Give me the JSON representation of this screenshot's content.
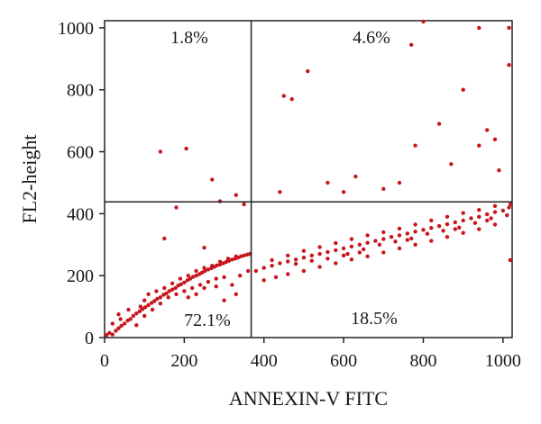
{
  "chart_data": {
    "type": "scatter",
    "title": "",
    "xlabel": "ANNEXIN-V FITC",
    "ylabel": "FL2-height",
    "xlim": [
      0,
      1023
    ],
    "ylim": [
      0,
      1023
    ],
    "xticks": [
      0,
      200,
      400,
      600,
      800,
      1000
    ],
    "yticks": [
      0,
      200,
      400,
      600,
      800,
      1000
    ],
    "xtick_labels": [
      "0",
      "200",
      "400",
      "600",
      "800",
      "1000"
    ],
    "ytick_labels": [
      "0",
      "200",
      "400",
      "600",
      "800",
      "1000"
    ],
    "gates": {
      "x": 368,
      "y": 438
    },
    "quadrants": [
      {
        "position": "upper-left",
        "label": "1.8%"
      },
      {
        "position": "upper-right",
        "label": "4.6%"
      },
      {
        "position": "lower-left",
        "label": "72.1%"
      },
      {
        "position": "lower-right",
        "label": "18.5%"
      }
    ],
    "point_color": "#c8161d",
    "grid": false,
    "legend": "none",
    "series": [
      {
        "points": [
          [
            5,
            8
          ],
          [
            12,
            15
          ],
          [
            20,
            10
          ],
          [
            28,
            22
          ],
          [
            35,
            30
          ],
          [
            42,
            38
          ],
          [
            50,
            45
          ],
          [
            58,
            55
          ],
          [
            65,
            60
          ],
          [
            72,
            70
          ],
          [
            80,
            78
          ],
          [
            88,
            85
          ],
          [
            95,
            92
          ],
          [
            102,
            98
          ],
          [
            110,
            105
          ],
          [
            118,
            112
          ],
          [
            125,
            118
          ],
          [
            132,
            125
          ],
          [
            140,
            130
          ],
          [
            148,
            138
          ],
          [
            155,
            142
          ],
          [
            162,
            150
          ],
          [
            170,
            155
          ],
          [
            178,
            160
          ],
          [
            185,
            168
          ],
          [
            192,
            172
          ],
          [
            200,
            178
          ],
          [
            208,
            185
          ],
          [
            215,
            190
          ],
          [
            222,
            196
          ],
          [
            230,
            200
          ],
          [
            238,
            205
          ],
          [
            245,
            210
          ],
          [
            252,
            215
          ],
          [
            260,
            220
          ],
          [
            268,
            224
          ],
          [
            275,
            228
          ],
          [
            282,
            233
          ],
          [
            290,
            236
          ],
          [
            298,
            240
          ],
          [
            305,
            244
          ],
          [
            312,
            248
          ],
          [
            320,
            252
          ],
          [
            328,
            255
          ],
          [
            335,
            258
          ],
          [
            342,
            262
          ],
          [
            350,
            265
          ],
          [
            358,
            268
          ],
          [
            365,
            270
          ],
          [
            120,
            90
          ],
          [
            140,
            110
          ],
          [
            160,
            130
          ],
          [
            180,
            140
          ],
          [
            200,
            150
          ],
          [
            220,
            160
          ],
          [
            240,
            170
          ],
          [
            260,
            180
          ],
          [
            280,
            190
          ],
          [
            300,
            195
          ],
          [
            150,
            160
          ],
          [
            170,
            175
          ],
          [
            190,
            190
          ],
          [
            210,
            200
          ],
          [
            230,
            215
          ],
          [
            250,
            225
          ],
          [
            270,
            232
          ],
          [
            290,
            245
          ],
          [
            310,
            255
          ],
          [
            330,
            262
          ],
          [
            100,
            120
          ],
          [
            90,
            100
          ],
          [
            130,
            150
          ],
          [
            320,
            170
          ],
          [
            340,
            200
          ],
          [
            360,
            215
          ],
          [
            250,
            160
          ],
          [
            230,
            140
          ],
          [
            210,
            130
          ],
          [
            280,
            165
          ],
          [
            380,
            215
          ],
          [
            400,
            225
          ],
          [
            420,
            232
          ],
          [
            440,
            240
          ],
          [
            460,
            246
          ],
          [
            480,
            252
          ],
          [
            500,
            258
          ],
          [
            520,
            265
          ],
          [
            540,
            270
          ],
          [
            560,
            276
          ],
          [
            580,
            282
          ],
          [
            600,
            288
          ],
          [
            620,
            294
          ],
          [
            640,
            300
          ],
          [
            660,
            306
          ],
          [
            680,
            312
          ],
          [
            700,
            318
          ],
          [
            720,
            325
          ],
          [
            740,
            330
          ],
          [
            760,
            336
          ],
          [
            780,
            342
          ],
          [
            800,
            348
          ],
          [
            820,
            354
          ],
          [
            840,
            360
          ],
          [
            860,
            366
          ],
          [
            880,
            372
          ],
          [
            900,
            378
          ],
          [
            920,
            385
          ],
          [
            940,
            390
          ],
          [
            960,
            398
          ],
          [
            980,
            405
          ],
          [
            1000,
            410
          ],
          [
            1015,
            420
          ],
          [
            400,
            185
          ],
          [
            430,
            195
          ],
          [
            460,
            205
          ],
          [
            500,
            215
          ],
          [
            540,
            228
          ],
          [
            580,
            240
          ],
          [
            620,
            252
          ],
          [
            660,
            262
          ],
          [
            700,
            275
          ],
          [
            740,
            288
          ],
          [
            780,
            300
          ],
          [
            820,
            312
          ],
          [
            860,
            325
          ],
          [
            900,
            338
          ],
          [
            940,
            350
          ],
          [
            980,
            365
          ],
          [
            420,
            250
          ],
          [
            460,
            265
          ],
          [
            500,
            280
          ],
          [
            540,
            292
          ],
          [
            580,
            305
          ],
          [
            620,
            318
          ],
          [
            660,
            330
          ],
          [
            700,
            340
          ],
          [
            740,
            352
          ],
          [
            780,
            365
          ],
          [
            820,
            378
          ],
          [
            860,
            390
          ],
          [
            900,
            402
          ],
          [
            940,
            412
          ],
          [
            980,
            425
          ],
          [
            560,
            255
          ],
          [
            610,
            270
          ],
          [
            650,
            285
          ],
          [
            690,
            300
          ],
          [
            730,
            310
          ],
          [
            770,
            320
          ],
          [
            810,
            335
          ],
          [
            850,
            345
          ],
          [
            890,
            355
          ],
          [
            930,
            370
          ],
          [
            970,
            385
          ],
          [
            1010,
            395
          ],
          [
            480,
            238
          ],
          [
            520,
            248
          ],
          [
            600,
            265
          ],
          [
            640,
            275
          ],
          [
            760,
            315
          ],
          [
            880,
            350
          ],
          [
            960,
            378
          ],
          [
            20,
            45
          ],
          [
            35,
            75
          ],
          [
            60,
            90
          ],
          [
            40,
            60
          ],
          [
            80,
            40
          ],
          [
            100,
            70
          ],
          [
            110,
            140
          ],
          [
            300,
            120
          ],
          [
            330,
            140
          ],
          [
            150,
            320
          ],
          [
            250,
            290
          ],
          [
            180,
            420
          ],
          [
            350,
            430
          ],
          [
            270,
            510
          ],
          [
            290,
            440
          ],
          [
            140,
            600
          ],
          [
            205,
            610
          ],
          [
            330,
            460
          ],
          [
            440,
            470
          ],
          [
            470,
            770
          ],
          [
            510,
            860
          ],
          [
            560,
            500
          ],
          [
            600,
            470
          ],
          [
            630,
            520
          ],
          [
            700,
            480
          ],
          [
            740,
            500
          ],
          [
            780,
            620
          ],
          [
            840,
            690
          ],
          [
            870,
            560
          ],
          [
            900,
            800
          ],
          [
            940,
            620
          ],
          [
            960,
            670
          ],
          [
            980,
            640
          ],
          [
            990,
            540
          ],
          [
            940,
            1000
          ],
          [
            800,
            1040
          ],
          [
            770,
            945
          ],
          [
            450,
            780
          ],
          [
            1015,
            880
          ],
          [
            1015,
            1000
          ],
          [
            1018,
            250
          ],
          [
            1019,
            430
          ]
        ]
      }
    ]
  }
}
